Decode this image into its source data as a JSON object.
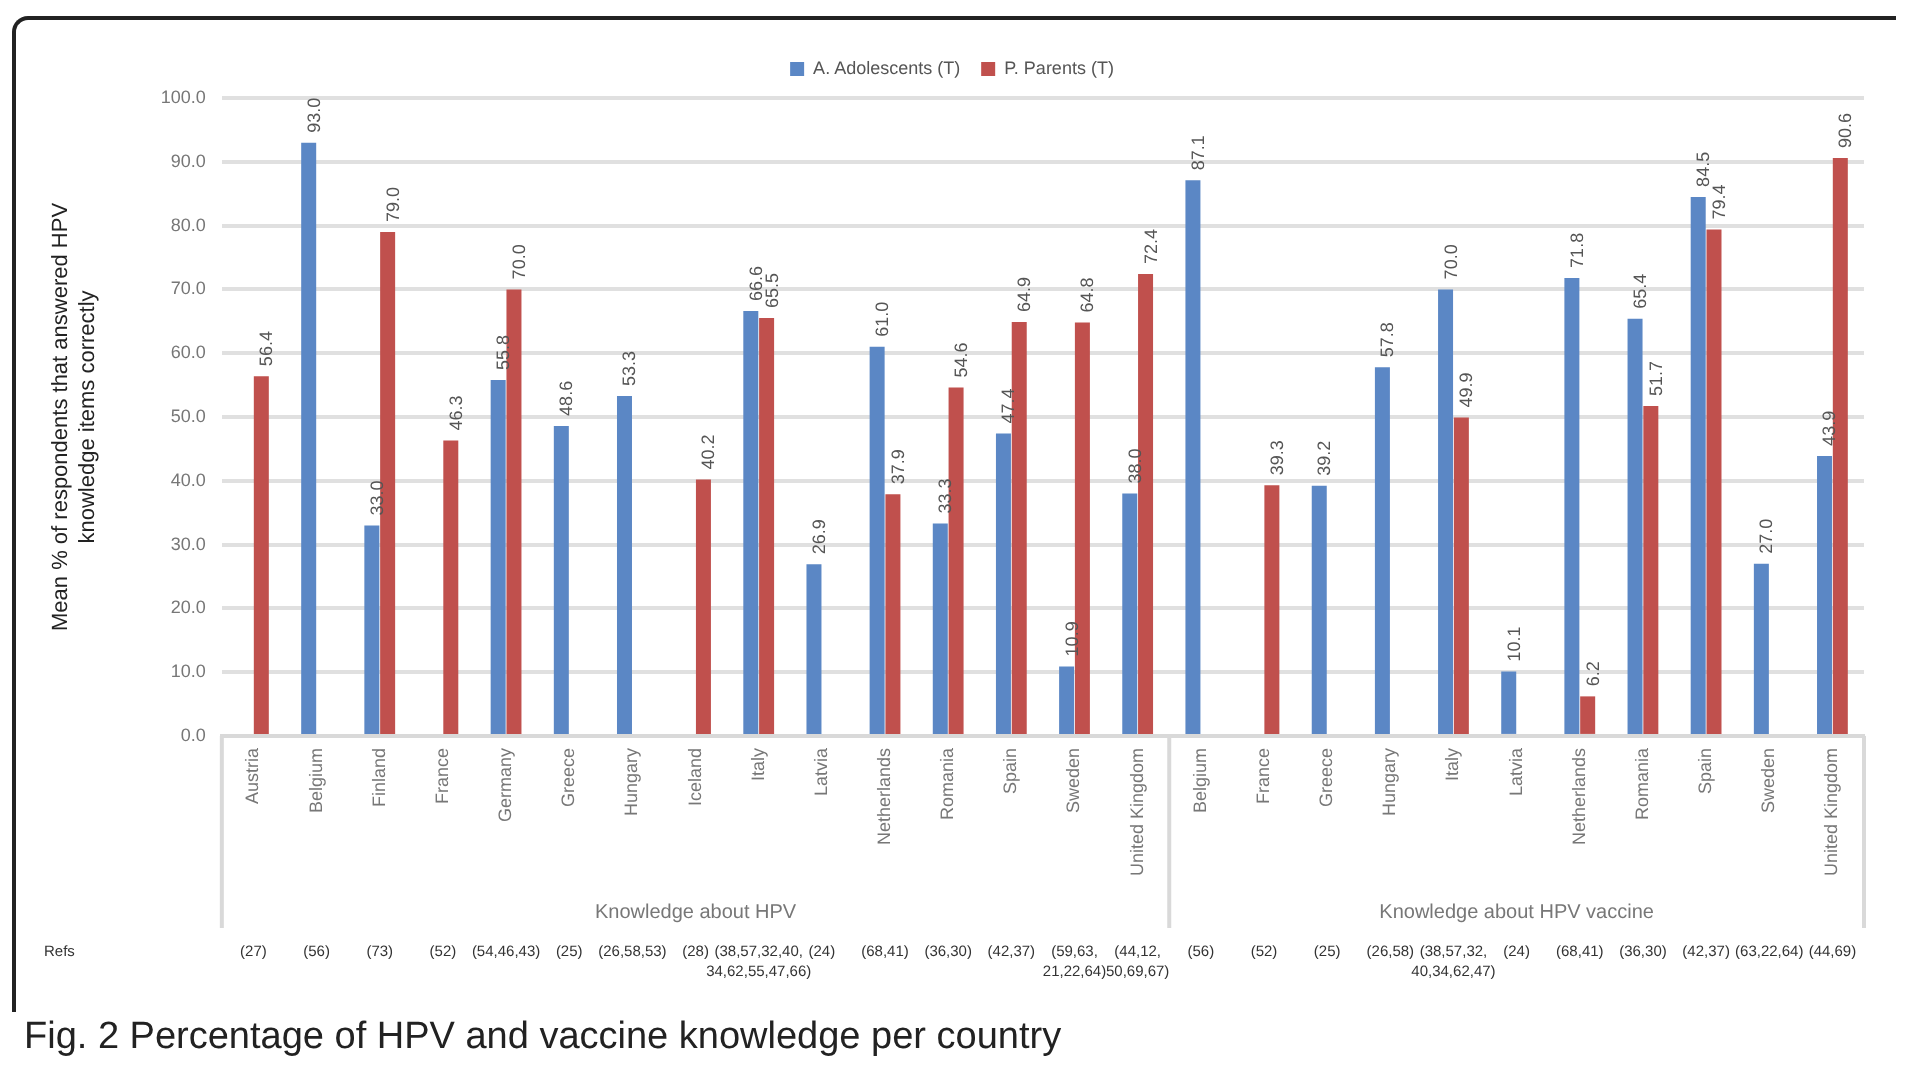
{
  "chart_data": {
    "type": "bar",
    "title": "Fig. 2 Percentage of HPV and vaccine knowledge per country",
    "ylabel": "Mean % of respondents that answered HPV knowledge items correctly",
    "categories": [
      "Austria",
      "Belgium",
      "Finland",
      "France",
      "Germany",
      "Greece",
      "Hungary",
      "Iceland",
      "Italy",
      "Latvia",
      "Netherlands",
      "Romania",
      "Spain",
      "Sweden",
      "United Kingdom",
      "Belgium",
      "France",
      "Greece",
      "Hungary",
      "Italy",
      "Latvia",
      "Netherlands",
      "Romania",
      "Spain",
      "Sweden",
      "United Kingdom"
    ],
    "series": [
      {
        "name": "A. Adolescents (T)",
        "color": "#5b87c5",
        "values": [
          null,
          93.0,
          33.0,
          null,
          55.8,
          48.6,
          53.3,
          null,
          66.6,
          26.9,
          61.0,
          33.3,
          47.4,
          10.9,
          38.0,
          87.1,
          null,
          39.2,
          57.8,
          70.0,
          10.1,
          71.8,
          65.4,
          84.5,
          27.0,
          43.9
        ],
        "value_labels": [
          null,
          "93.0",
          "33.0",
          null,
          "55.8",
          "48.6",
          "53.3",
          null,
          "66.6",
          "26.9",
          "61.0",
          "33.3",
          "47.4",
          "10.9",
          "38.0",
          "87.1",
          null,
          "39.2",
          "57.8",
          "70.0",
          "10.1",
          "71.8",
          "65.4",
          "84.5",
          "27.0",
          "43.9"
        ]
      },
      {
        "name": "P. Parents (T)",
        "color": "#c0504d",
        "values": [
          56.4,
          null,
          79.0,
          46.3,
          70.0,
          null,
          null,
          40.2,
          65.5,
          null,
          37.9,
          54.6,
          64.9,
          64.8,
          72.4,
          null,
          39.3,
          null,
          null,
          49.9,
          null,
          6.2,
          51.7,
          79.4,
          null,
          90.6
        ],
        "value_labels": [
          "56.4",
          null,
          "79.0",
          "46.3",
          "70.0",
          null,
          null,
          "40.2",
          "65.5",
          null,
          "37.9",
          "54.6",
          "64.9",
          "64.8",
          "72.4",
          null,
          "39.3",
          null,
          null,
          "49.9",
          null,
          "6.2",
          "51.7",
          "79.4",
          null,
          "90.6"
        ]
      }
    ],
    "ylim": [
      0,
      100
    ],
    "yticks": [
      {
        "value": 0,
        "label": "0.0"
      },
      {
        "value": 10,
        "label": "10.0"
      },
      {
        "value": 20,
        "label": "20.0"
      },
      {
        "value": 30,
        "label": "30.0"
      },
      {
        "value": 40,
        "label": "40.0"
      },
      {
        "value": 50,
        "label": "50.0"
      },
      {
        "value": 60,
        "label": "60.0"
      },
      {
        "value": 70,
        "label": "70.0"
      },
      {
        "value": 80,
        "label": "80.0"
      },
      {
        "value": 90,
        "label": "90.0"
      },
      {
        "value": 100,
        "label": "100.0"
      }
    ],
    "grid": "y",
    "legend": "top",
    "annotations": [
      "Knowledge about HPV",
      "Knowledge about HPV vaccine",
      "Refs",
      "(27)",
      "(56)",
      "(73)",
      "(52)",
      "(54,46,43)",
      "(25)",
      "(26,58,53)",
      "(28)",
      "(38,57,32,40, 34,62,55,47,66)",
      "(24)",
      "(68,41)",
      "(36,30)",
      "(42,37)",
      "(59,63, 21,22,64)",
      "(44,12, 50,69,67)",
      "(56)",
      "(52)",
      "(25)",
      "(26,58)",
      "(38,57,32, 40,34,62,47)",
      "(24)",
      "(68,41)",
      "(36,30)",
      "(42,37)",
      "(63,22,64)",
      "(44,69)"
    ]
  }
}
